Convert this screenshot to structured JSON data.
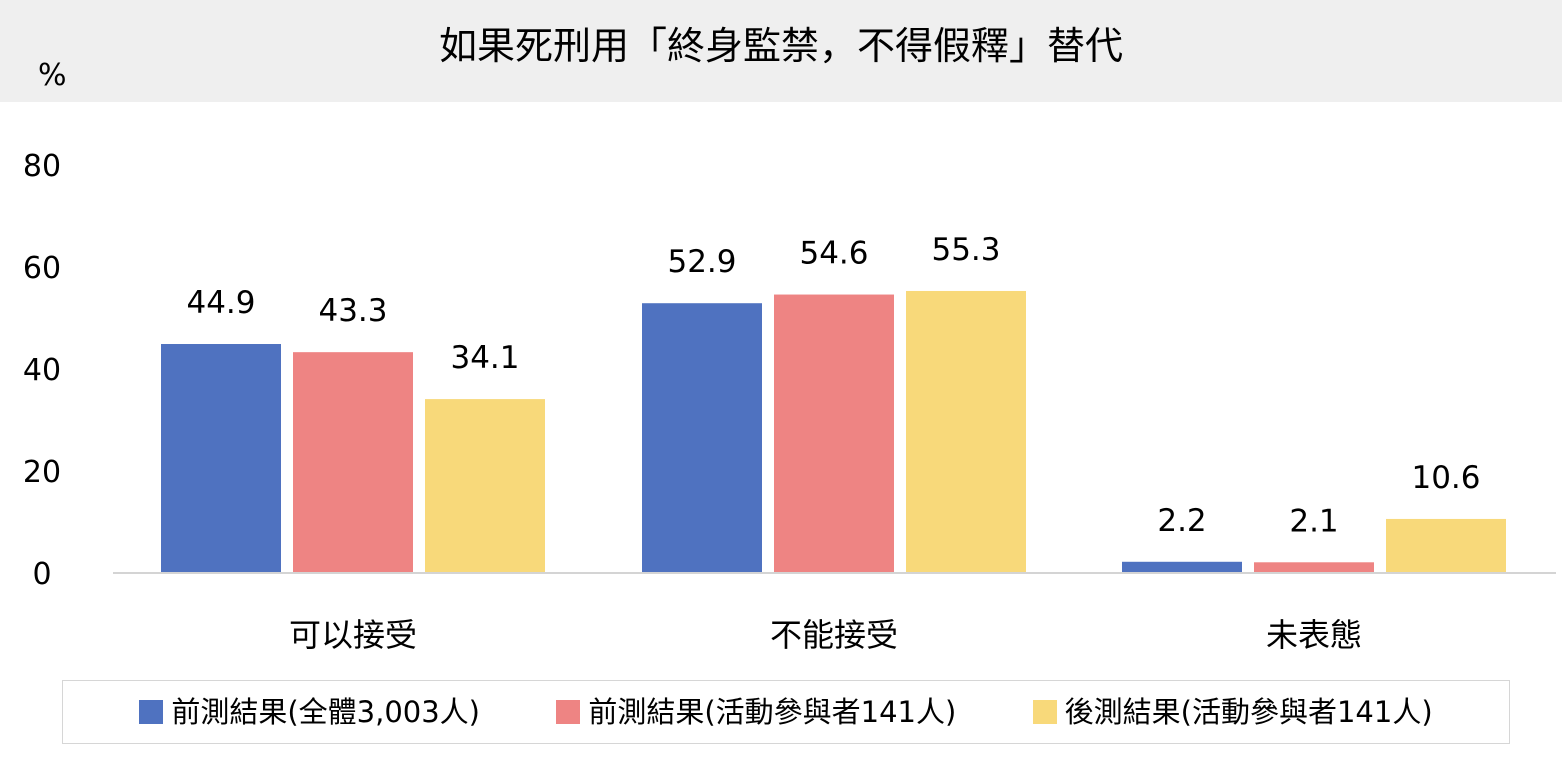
{
  "chart_data": {
    "type": "bar",
    "title": "如果死刑用「終身監禁，不得假釋」替代",
    "ylabel": "%",
    "xlabel": "",
    "ylim": [
      0,
      80
    ],
    "yticks": [
      0,
      20,
      40,
      60,
      80
    ],
    "grid": false,
    "legend_position": "bottom",
    "categories": [
      "可以接受",
      "不能接受",
      "未表態"
    ],
    "series": [
      {
        "name": "前測結果(全體3,003人)",
        "color": "#4f72c0",
        "values": [
          44.9,
          52.9,
          2.2
        ]
      },
      {
        "name": "前測結果(活動參與者141人)",
        "color": "#ee8483",
        "values": [
          43.3,
          54.6,
          2.1
        ]
      },
      {
        "name": "後測結果(活動參與者141人)",
        "color": "#f8d97a",
        "values": [
          34.1,
          55.3,
          10.6
        ]
      }
    ]
  }
}
